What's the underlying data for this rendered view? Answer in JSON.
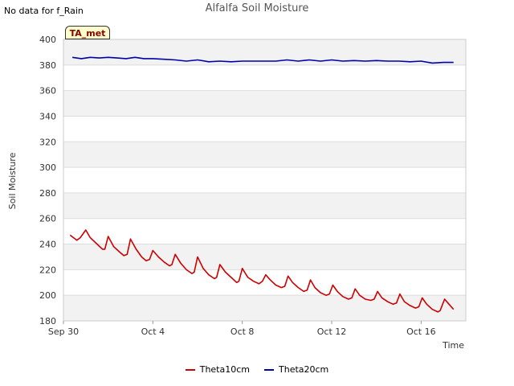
{
  "chart_data": {
    "type": "line",
    "title": "Alfalfa Soil Moisture",
    "note": "No data for f_Rain",
    "badge": "TA_met",
    "xlabel": "Time",
    "ylabel": "Soil Moisture",
    "ylim": [
      180,
      400
    ],
    "xlim_days": [
      0,
      18
    ],
    "yticks": [
      180,
      200,
      220,
      240,
      260,
      280,
      300,
      320,
      340,
      360,
      380,
      400
    ],
    "xticks": [
      {
        "day": 0,
        "label": "Sep 30"
      },
      {
        "day": 4,
        "label": "Oct 4"
      },
      {
        "day": 8,
        "label": "Oct 8"
      },
      {
        "day": 12,
        "label": "Oct 12"
      },
      {
        "day": 16,
        "label": "Oct 16"
      }
    ],
    "series": [
      {
        "name": "Theta10cm",
        "color": "#cc0000",
        "points": [
          [
            0.3,
            247
          ],
          [
            0.6,
            243
          ],
          [
            0.75,
            245
          ],
          [
            1.0,
            251
          ],
          [
            1.2,
            245
          ],
          [
            1.5,
            240
          ],
          [
            1.75,
            236
          ],
          [
            1.85,
            236
          ],
          [
            2.0,
            246
          ],
          [
            2.25,
            238
          ],
          [
            2.5,
            234
          ],
          [
            2.7,
            231
          ],
          [
            2.85,
            232
          ],
          [
            3.0,
            244
          ],
          [
            3.25,
            236
          ],
          [
            3.5,
            230
          ],
          [
            3.7,
            227
          ],
          [
            3.85,
            228
          ],
          [
            4.0,
            235
          ],
          [
            4.25,
            230
          ],
          [
            4.5,
            226
          ],
          [
            4.75,
            223
          ],
          [
            4.85,
            224
          ],
          [
            5.0,
            232
          ],
          [
            5.25,
            225
          ],
          [
            5.5,
            220
          ],
          [
            5.75,
            217
          ],
          [
            5.85,
            218
          ],
          [
            6.0,
            230
          ],
          [
            6.25,
            221
          ],
          [
            6.5,
            216
          ],
          [
            6.75,
            213
          ],
          [
            6.85,
            214
          ],
          [
            7.0,
            224
          ],
          [
            7.25,
            218
          ],
          [
            7.5,
            214
          ],
          [
            7.75,
            210
          ],
          [
            7.85,
            211
          ],
          [
            8.0,
            221
          ],
          [
            8.25,
            214
          ],
          [
            8.5,
            211
          ],
          [
            8.75,
            209
          ],
          [
            8.9,
            211
          ],
          [
            9.05,
            216
          ],
          [
            9.25,
            212
          ],
          [
            9.5,
            208
          ],
          [
            9.75,
            206
          ],
          [
            9.9,
            207
          ],
          [
            10.05,
            215
          ],
          [
            10.25,
            210
          ],
          [
            10.5,
            206
          ],
          [
            10.75,
            203
          ],
          [
            10.9,
            204
          ],
          [
            11.05,
            212
          ],
          [
            11.25,
            206
          ],
          [
            11.5,
            202
          ],
          [
            11.75,
            200
          ],
          [
            11.9,
            201
          ],
          [
            12.05,
            208
          ],
          [
            12.25,
            203
          ],
          [
            12.5,
            199
          ],
          [
            12.75,
            197
          ],
          [
            12.9,
            198
          ],
          [
            13.05,
            205
          ],
          [
            13.25,
            200
          ],
          [
            13.5,
            197
          ],
          [
            13.75,
            196
          ],
          [
            13.9,
            197
          ],
          [
            14.05,
            203
          ],
          [
            14.25,
            198
          ],
          [
            14.5,
            195
          ],
          [
            14.75,
            193
          ],
          [
            14.9,
            194
          ],
          [
            15.05,
            201
          ],
          [
            15.25,
            195
          ],
          [
            15.5,
            192
          ],
          [
            15.75,
            190
          ],
          [
            15.9,
            191
          ],
          [
            16.05,
            198
          ],
          [
            16.25,
            193
          ],
          [
            16.5,
            189
          ],
          [
            16.75,
            187
          ],
          [
            16.85,
            188
          ],
          [
            17.05,
            197
          ],
          [
            17.25,
            193
          ],
          [
            17.45,
            189
          ]
        ]
      },
      {
        "name": "Theta20cm",
        "color": "#0000aa",
        "points": [
          [
            0.4,
            386
          ],
          [
            0.8,
            385
          ],
          [
            1.2,
            386
          ],
          [
            1.6,
            385.5
          ],
          [
            2.0,
            386
          ],
          [
            2.4,
            385.5
          ],
          [
            2.8,
            385
          ],
          [
            3.2,
            386
          ],
          [
            3.6,
            385
          ],
          [
            4.0,
            385
          ],
          [
            4.5,
            384.5
          ],
          [
            5.0,
            384
          ],
          [
            5.5,
            383
          ],
          [
            6.0,
            384
          ],
          [
            6.5,
            382.5
          ],
          [
            7.0,
            383
          ],
          [
            7.5,
            382.5
          ],
          [
            8.0,
            383
          ],
          [
            8.5,
            383
          ],
          [
            9.0,
            383
          ],
          [
            9.5,
            383
          ],
          [
            10.0,
            384
          ],
          [
            10.5,
            383
          ],
          [
            11.0,
            384
          ],
          [
            11.5,
            383
          ],
          [
            12.0,
            384
          ],
          [
            12.5,
            383
          ],
          [
            13.0,
            383.5
          ],
          [
            13.5,
            383
          ],
          [
            14.0,
            383.5
          ],
          [
            14.5,
            383
          ],
          [
            15.0,
            383
          ],
          [
            15.5,
            382.5
          ],
          [
            16.0,
            383
          ],
          [
            16.5,
            381.5
          ],
          [
            17.0,
            382
          ],
          [
            17.45,
            382
          ]
        ]
      }
    ]
  }
}
